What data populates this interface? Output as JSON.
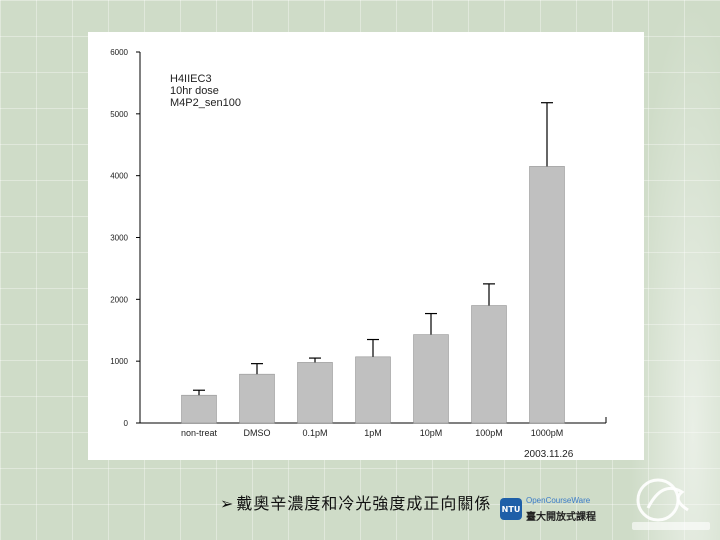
{
  "chart_data": {
    "type": "bar",
    "categories": [
      "non-treat",
      "DMSO",
      "0.1pM",
      "1pM",
      "10pM",
      "100pM",
      "1000pM"
    ],
    "values": [
      450,
      790,
      980,
      1070,
      1430,
      1900,
      4150
    ],
    "errors": [
      80,
      170,
      70,
      280,
      340,
      350,
      1030
    ],
    "ylim": [
      0,
      6000
    ],
    "yticks": [
      0,
      1000,
      2000,
      3000,
      4000,
      5000,
      6000
    ],
    "annotation_lines": [
      "H4IIEC3",
      "10hr dose",
      "M4P2_sen100"
    ],
    "date": "2003.11.26",
    "colors": {
      "bar": "#c0c0c0",
      "axis": "#000000"
    },
    "grid": false
  },
  "caption": {
    "arrow": "➢",
    "text": "戴奧辛濃度和冷光強度成正向關係"
  },
  "ocw_logo": {
    "mark": "NTU",
    "english": "OpenCourseWare",
    "chinese": "臺大開放式課程"
  }
}
